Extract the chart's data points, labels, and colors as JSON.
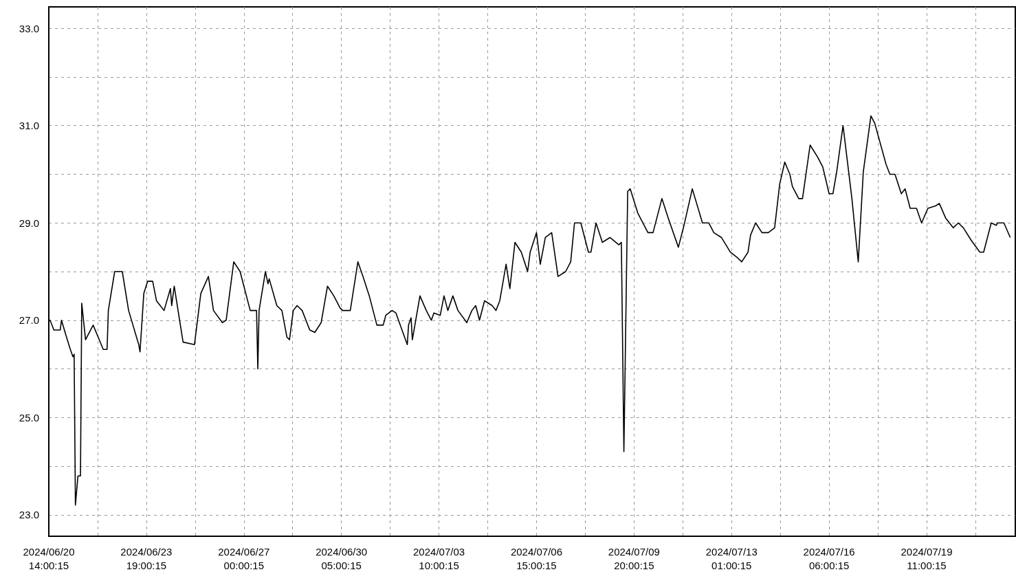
{
  "chart_data": {
    "type": "line",
    "line_style": "solid",
    "marker": "none",
    "grid": true,
    "xlim": [
      "2024-06-20T14:00",
      "2024-07-22T09:00"
    ],
    "xticks": [
      {
        "value": "2024-06-20T14:00",
        "label": "2024/06/20\n14:00:15"
      },
      {
        "value": "2024-06-22T04:30",
        "label": null
      },
      {
        "value": "2024-06-23T19:00",
        "label": "2024/06/23\n19:00:15"
      },
      {
        "value": "2024-06-25T09:30",
        "label": null
      },
      {
        "value": "2024-06-27T00:00",
        "label": "2024/06/27\n00:00:15"
      },
      {
        "value": "2024-06-28T14:30",
        "label": null
      },
      {
        "value": "2024-06-30T05:00",
        "label": "2024/06/30\n05:00:15"
      },
      {
        "value": "2024-07-01T19:30",
        "label": null
      },
      {
        "value": "2024-07-03T10:00",
        "label": "2024/07/03\n10:00:15"
      },
      {
        "value": "2024-07-05T00:30",
        "label": null
      },
      {
        "value": "2024-07-06T15:00",
        "label": "2024/07/06\n15:00:15"
      },
      {
        "value": "2024-07-08T05:30",
        "label": null
      },
      {
        "value": "2024-07-09T20:00",
        "label": "2024/07/09\n20:00:15"
      },
      {
        "value": "2024-07-11T10:30",
        "label": null
      },
      {
        "value": "2024-07-13T01:00",
        "label": "2024/07/13\n01:00:15"
      },
      {
        "value": "2024-07-14T15:30",
        "label": null
      },
      {
        "value": "2024-07-16T06:00",
        "label": "2024/07/16\n06:00:15"
      },
      {
        "value": "2024-07-17T20:30",
        "label": null
      },
      {
        "value": "2024-07-19T11:00",
        "label": "2024/07/19\n11:00:15"
      },
      {
        "value": "2024-07-21T01:30",
        "label": null
      }
    ],
    "ylim": [
      22.56,
      33.44
    ],
    "yticks": [
      {
        "value": 23,
        "label": "23.0"
      },
      {
        "value": 24,
        "label": null
      },
      {
        "value": 25,
        "label": "25.0"
      },
      {
        "value": 26,
        "label": null
      },
      {
        "value": 27,
        "label": "27.0"
      },
      {
        "value": 28,
        "label": null
      },
      {
        "value": 29,
        "label": "29.0"
      },
      {
        "value": 30,
        "label": null
      },
      {
        "value": 31,
        "label": "31.0"
      },
      {
        "value": 32,
        "label": null
      },
      {
        "value": 33,
        "label": "33.0"
      }
    ],
    "series": [
      {
        "color": "#000000",
        "x": [
          "2024-06-20T14:00",
          "2024-06-20T15:00",
          "2024-06-20T18:00",
          "2024-06-20T23:00",
          "2024-06-21T00:00",
          "2024-06-21T04:00",
          "2024-06-21T07:00",
          "2024-06-21T09:00",
          "2024-06-21T10:00",
          "2024-06-21T11:00",
          "2024-06-21T13:00",
          "2024-06-21T15:00",
          "2024-06-21T16:00",
          "2024-06-21T19:00",
          "2024-06-22T01:00",
          "2024-06-22T05:00",
          "2024-06-22T09:00",
          "2024-06-22T12:00",
          "2024-06-22T13:00",
          "2024-06-22T18:00",
          "2024-06-23T00:00",
          "2024-06-23T05:00",
          "2024-06-23T13:00",
          "2024-06-23T14:00",
          "2024-06-23T17:00",
          "2024-06-23T20:00",
          "2024-06-24T00:00",
          "2024-06-24T03:00",
          "2024-06-24T09:00",
          "2024-06-24T14:00",
          "2024-06-24T15:00",
          "2024-06-24T17:00",
          "2024-06-25T00:00",
          "2024-06-25T09:00",
          "2024-06-25T14:00",
          "2024-06-25T20:00",
          "2024-06-26T00:00",
          "2024-06-26T07:00",
          "2024-06-26T10:00",
          "2024-06-26T16:00",
          "2024-06-26T21:00",
          "2024-06-27T05:00",
          "2024-06-27T10:00",
          "2024-06-27T11:00",
          "2024-06-27T12:00",
          "2024-06-27T17:00",
          "2024-06-27T19:00",
          "2024-06-27T20:00",
          "2024-06-28T02:00",
          "2024-06-28T06:00",
          "2024-06-28T10:00",
          "2024-06-28T12:00",
          "2024-06-28T15:00",
          "2024-06-28T18:00",
          "2024-06-28T22:00",
          "2024-06-29T04:00",
          "2024-06-29T08:00",
          "2024-06-29T13:00",
          "2024-06-29T18:00",
          "2024-06-29T23:00",
          "2024-06-30T04:00",
          "2024-06-30T06:00",
          "2024-06-30T12:00",
          "2024-06-30T18:00",
          "2024-06-30T22:00",
          "2024-07-01T03:00",
          "2024-07-01T09:00",
          "2024-07-01T14:00",
          "2024-07-01T16:00",
          "2024-07-01T21:00",
          "2024-07-02T00:00",
          "2024-07-02T09:00",
          "2024-07-02T10:00",
          "2024-07-02T12:00",
          "2024-07-02T13:00",
          "2024-07-02T17:00",
          "2024-07-02T19:00",
          "2024-07-03T00:00",
          "2024-07-03T04:00",
          "2024-07-03T06:00",
          "2024-07-03T11:00",
          "2024-07-03T14:00",
          "2024-07-03T17:00",
          "2024-07-03T21:00",
          "2024-07-04T01:00",
          "2024-07-04T08:00",
          "2024-07-04T12:00",
          "2024-07-04T15:00",
          "2024-07-04T18:00",
          "2024-07-04T22:00",
          "2024-07-05T04:00",
          "2024-07-05T07:00",
          "2024-07-05T10:00",
          "2024-07-05T15:00",
          "2024-07-05T18:00",
          "2024-07-05T22:00",
          "2024-07-06T03:00",
          "2024-07-06T08:00",
          "2024-07-06T10:00",
          "2024-07-06T15:00",
          "2024-07-06T18:00",
          "2024-07-06T22:00",
          "2024-07-07T03:00",
          "2024-07-07T08:00",
          "2024-07-07T14:00",
          "2024-07-07T18:00",
          "2024-07-07T21:00",
          "2024-07-08T02:00",
          "2024-07-08T08:00",
          "2024-07-08T10:00",
          "2024-07-08T14:00",
          "2024-07-08T19:00",
          "2024-07-09T01:00",
          "2024-07-09T08:00",
          "2024-07-09T10:00",
          "2024-07-09T12:00",
          "2024-07-09T15:00",
          "2024-07-09T17:00",
          "2024-07-09T23:00",
          "2024-07-10T07:00",
          "2024-07-10T11:00",
          "2024-07-10T18:00",
          "2024-07-10T23:00",
          "2024-07-11T07:00",
          "2024-07-11T11:00",
          "2024-07-11T18:00",
          "2024-07-12T02:00",
          "2024-07-12T07:00",
          "2024-07-12T11:00",
          "2024-07-12T17:00",
          "2024-07-13T00:00",
          "2024-07-13T05:00",
          "2024-07-13T09:00",
          "2024-07-13T14:00",
          "2024-07-13T16:00",
          "2024-07-13T20:00",
          "2024-07-14T01:00",
          "2024-07-14T06:00",
          "2024-07-14T11:00",
          "2024-07-14T15:00",
          "2024-07-14T19:00",
          "2024-07-14T23:00",
          "2024-07-15T01:00",
          "2024-07-15T06:00",
          "2024-07-15T09:00",
          "2024-07-15T15:00",
          "2024-07-15T21:00",
          "2024-07-16T01:00",
          "2024-07-16T06:00",
          "2024-07-16T09:00",
          "2024-07-16T12:00",
          "2024-07-16T17:00",
          "2024-07-17T00:00",
          "2024-07-17T05:00",
          "2024-07-17T09:00",
          "2024-07-17T15:00",
          "2024-07-17T18:00",
          "2024-07-18T03:00",
          "2024-07-18T06:00",
          "2024-07-18T10:00",
          "2024-07-18T15:00",
          "2024-07-18T18:00",
          "2024-07-18T22:00",
          "2024-07-19T03:00",
          "2024-07-19T07:00",
          "2024-07-19T12:00",
          "2024-07-19T18:00",
          "2024-07-19T21:00",
          "2024-07-20T02:00",
          "2024-07-20T08:00",
          "2024-07-20T12:00",
          "2024-07-20T16:00",
          "2024-07-20T22:00",
          "2024-07-21T05:00",
          "2024-07-21T08:00",
          "2024-07-21T11:00",
          "2024-07-21T14:00",
          "2024-07-21T18:00",
          "2024-07-21T19:00",
          "2024-07-22T00:00",
          "2024-07-22T05:00"
        ],
        "values": [
          27.0,
          27.0,
          26.8,
          26.8,
          27.0,
          26.65,
          26.4,
          26.25,
          26.3,
          23.2,
          23.8,
          23.8,
          27.35,
          26.6,
          26.9,
          26.65,
          26.4,
          26.4,
          27.2,
          28.0,
          28.0,
          27.2,
          26.5,
          26.35,
          27.55,
          27.8,
          27.8,
          27.4,
          27.2,
          27.65,
          27.3,
          27.7,
          26.55,
          26.5,
          27.55,
          27.9,
          27.2,
          26.95,
          27.0,
          28.2,
          28.0,
          27.2,
          27.2,
          26.0,
          27.2,
          28.0,
          27.75,
          27.85,
          27.3,
          27.2,
          26.65,
          26.6,
          27.2,
          27.3,
          27.2,
          26.8,
          26.75,
          26.95,
          27.7,
          27.5,
          27.25,
          27.2,
          27.2,
          28.2,
          27.9,
          27.5,
          26.9,
          26.9,
          27.1,
          27.2,
          27.15,
          26.5,
          26.9,
          27.05,
          26.6,
          27.2,
          27.5,
          27.2,
          27.0,
          27.15,
          27.1,
          27.5,
          27.2,
          27.5,
          27.2,
          26.95,
          27.2,
          27.3,
          27.0,
          27.4,
          27.3,
          27.2,
          27.4,
          28.15,
          27.65,
          28.6,
          28.4,
          28.0,
          28.4,
          28.8,
          28.15,
          28.7,
          28.8,
          27.9,
          28.0,
          28.2,
          29.0,
          29.0,
          28.4,
          28.4,
          29.0,
          28.6,
          28.7,
          28.55,
          28.6,
          24.3,
          29.65,
          29.7,
          29.2,
          28.8,
          28.8,
          29.5,
          29.1,
          28.5,
          28.9,
          29.7,
          29.0,
          29.0,
          28.8,
          28.7,
          28.4,
          28.3,
          28.2,
          28.4,
          28.75,
          29.0,
          28.8,
          28.8,
          28.9,
          29.8,
          30.25,
          30.0,
          29.75,
          29.5,
          29.5,
          30.6,
          30.35,
          30.15,
          29.6,
          29.6,
          30.05,
          31.0,
          29.5,
          28.2,
          30.05,
          31.2,
          31.05,
          30.2,
          30.0,
          30.0,
          29.6,
          29.7,
          29.3,
          29.3,
          29.0,
          29.3,
          29.35,
          29.4,
          29.1,
          28.9,
          29.0,
          28.9,
          28.65,
          28.4,
          28.4,
          28.7,
          29.0,
          28.95,
          29.0,
          29.0,
          28.7
        ]
      }
    ]
  }
}
